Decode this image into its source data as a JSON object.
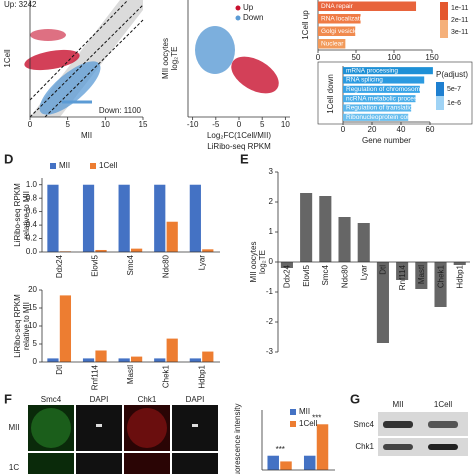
{
  "chart_data": [
    {
      "type": "scatter",
      "annotations": [
        "Up: 3242",
        "Down: 1100"
      ],
      "ylabel": [
        "1Cell"
      ],
      "xlabel": [
        "MII"
      ],
      "xlim": [
        0,
        15
      ],
      "xticks": [
        0,
        5,
        10,
        15
      ],
      "colors": {
        "up": "#c8102e",
        "down": "#5b9bd5"
      }
    },
    {
      "type": "scatter",
      "ylabel": [
        "MII oocytes",
        "log₂TE"
      ],
      "xlabel": [
        "Log₂FC(1Cell/MII)",
        "LiRibo-seq RPKM"
      ],
      "xlim": [
        -11,
        11
      ],
      "xticks": [
        -10,
        -5,
        0,
        5,
        10
      ],
      "series": [
        {
          "name": "Up",
          "color": "#c8102e"
        },
        {
          "name": "Down",
          "color": "#5b9bd5"
        }
      ]
    },
    {
      "type": "hbar",
      "ylabel": [
        "1Cell up"
      ],
      "categories": [
        "DNA repair",
        "RNA localization",
        "Golgi vesicle transport",
        "Nuclear division"
      ],
      "values": [
        129,
        56,
        49,
        36
      ],
      "colors": [
        "#e8643c",
        "#ef7b45",
        "#f08a4e",
        "#f29a5a"
      ],
      "xlim": [
        0,
        150
      ],
      "xticks": [
        0,
        50,
        100,
        150
      ],
      "legend_ticks": [
        "1e-11",
        "2e-11",
        "3e-11"
      ],
      "legend_colors": [
        "#e4572e",
        "#f5b07a"
      ]
    },
    {
      "type": "hbar",
      "ylabel": [
        "1Cell down"
      ],
      "xlabel": "Gene number",
      "categories": [
        "mRNA processing",
        "RNA splicing",
        "Regulation of chromosome organization",
        "ncRNA metabolic process",
        "Regulation of translation",
        "Ribonucleoprotein complex biogenesis"
      ],
      "values": [
        62,
        56,
        53,
        50,
        47,
        45
      ],
      "colors": [
        "#1e90d6",
        "#2b9ae0",
        "#38a3e6",
        "#49ade9",
        "#5ab6ec",
        "#6bbfef"
      ],
      "xlim": [
        0,
        60
      ],
      "xticks": [
        0,
        20,
        40,
        60
      ],
      "legend_title": "P(adjust)",
      "legend_ticks": [
        "5e-7",
        "1e-6"
      ],
      "legend_colors": [
        "#1e7fd0",
        "#9fd3f5"
      ]
    },
    {
      "type": "bar",
      "ylabel": [
        "LiRibo-seq RPKM",
        "relative to MII"
      ],
      "categories": [
        "Ddx24",
        "Elovl5",
        "Smc4",
        "Ndc80",
        "Lyar"
      ],
      "series": [
        {
          "name": "MII",
          "color": "#4472c4",
          "values": [
            1,
            1,
            1,
            1,
            1
          ]
        },
        {
          "name": "1Cell",
          "color": "#ed7d31",
          "values": [
            0.01,
            0.03,
            0.05,
            0.45,
            0.04
          ]
        }
      ],
      "ylim": [
        0,
        1.1
      ],
      "yticks": [
        {
          "value": 0,
          "label": "0.0"
        },
        0.2,
        0.4,
        0.6,
        0.8,
        {
          "value": 1,
          "label": "1.0"
        }
      ],
      "legend": "top"
    },
    {
      "type": "bar",
      "ylabel": [
        "LiRibo-seq RPKM",
        "relative to MII"
      ],
      "categories": [
        "Dtl",
        "Rnf114",
        "Mastl",
        "Chek1",
        "Hdbp1"
      ],
      "series": [
        {
          "name": "MII",
          "color": "#4472c4",
          "values": [
            1,
            1,
            1,
            1,
            1
          ]
        },
        {
          "name": "1Cell",
          "color": "#ed7d31",
          "values": [
            18.5,
            3.2,
            1.5,
            6.5,
            2.9
          ]
        }
      ],
      "ylim": [
        0,
        20
      ],
      "yticks": [
        0,
        5,
        10,
        15,
        20
      ]
    },
    {
      "type": "bar",
      "ylabel": [
        "MII oocytes",
        "log₂TE"
      ],
      "categories": [
        "Ddx24",
        "Elovl5",
        "Smc4",
        "Ndc80",
        "Lyar",
        "Dtl",
        "Rnf114",
        "Mastl",
        "Chek1",
        "Hdbp1"
      ],
      "values": [
        -0.2,
        2.3,
        2.2,
        1.5,
        1.3,
        -2.7,
        -0.6,
        -0.9,
        -1.5,
        -0.1
      ],
      "color": "#666666",
      "ylim": [
        -3,
        3
      ],
      "yticks": [
        -3,
        -2,
        -1,
        0,
        1,
        2,
        3
      ]
    },
    {
      "type": "bar",
      "ylabel": [
        "uorescence intensity"
      ],
      "categories": [
        null,
        null
      ],
      "series": [
        {
          "name": "MII",
          "color": "#4472c4",
          "values": [
            1,
            1
          ]
        },
        {
          "name": "1Cell",
          "color": "#ed7d31",
          "values": [
            0.6,
            3.2
          ]
        }
      ],
      "ylim": [
        0,
        4.2
      ],
      "annotations": [
        "***",
        "***"
      ],
      "legend": "top"
    }
  ],
  "panel_labels": [
    "D",
    "E",
    "F",
    "G"
  ],
  "figure_f": {
    "columns": [
      "Smc4",
      "DAPI",
      "Chk1",
      "DAPI"
    ],
    "rows": [
      "MII",
      "1C"
    ]
  },
  "figure_g": {
    "columns": [
      "MII",
      "1Cell"
    ],
    "rows": [
      "Smc4",
      "Chk1"
    ]
  }
}
